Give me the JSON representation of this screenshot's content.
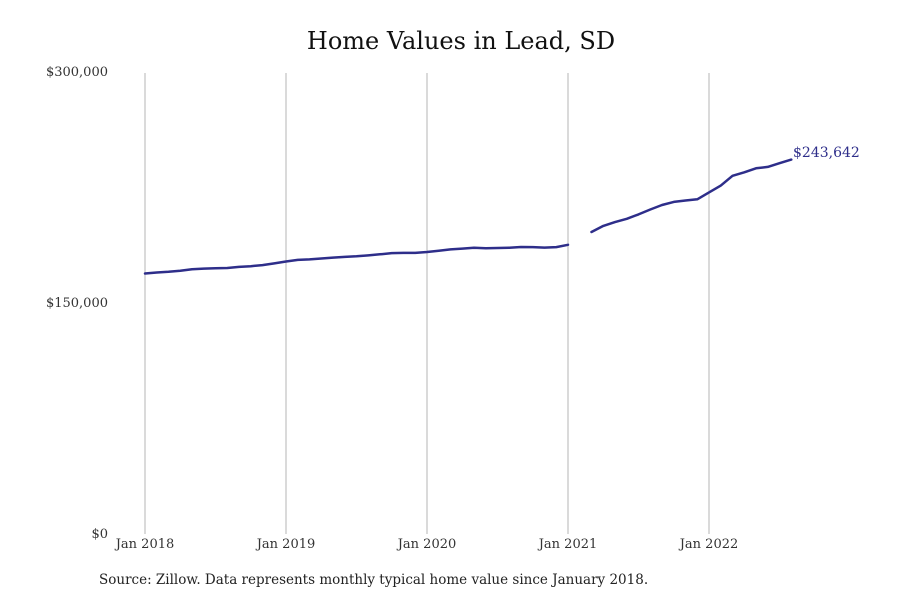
{
  "chart_data": {
    "type": "line",
    "title": "Home Values in Lead, SD",
    "xlabel": "",
    "ylabel": "",
    "yticks": [
      "$0",
      "$150,000",
      "$300,000"
    ],
    "ylim": [
      0,
      300000
    ],
    "xticks": [
      "Jan 2018",
      "Jan 2019",
      "Jan 2020",
      "Jan 2021",
      "Jan 2022"
    ],
    "grid": "vertical",
    "line_color": "#2e2e8a",
    "end_label": "$243,642",
    "series": [
      {
        "values": [
          {
            "date": "2018-01",
            "value": 169500
          },
          {
            "date": "2018-02",
            "value": 170200
          },
          {
            "date": "2018-03",
            "value": 170600
          },
          {
            "date": "2018-04",
            "value": 171300
          },
          {
            "date": "2018-05",
            "value": 172300
          },
          {
            "date": "2018-06",
            "value": 172700
          },
          {
            "date": "2018-07",
            "value": 173000
          },
          {
            "date": "2018-08",
            "value": 173100
          },
          {
            "date": "2018-09",
            "value": 173800
          },
          {
            "date": "2018-10",
            "value": 174300
          },
          {
            "date": "2018-11",
            "value": 175000
          },
          {
            "date": "2018-12",
            "value": 176100
          },
          {
            "date": "2019-01",
            "value": 177300
          },
          {
            "date": "2019-02",
            "value": 178400
          },
          {
            "date": "2019-03",
            "value": 178700
          },
          {
            "date": "2019-04",
            "value": 179300
          },
          {
            "date": "2019-05",
            "value": 179900
          },
          {
            "date": "2019-06",
            "value": 180300
          },
          {
            "date": "2019-07",
            "value": 180700
          },
          {
            "date": "2019-08",
            "value": 181300
          },
          {
            "date": "2019-09",
            "value": 182000
          },
          {
            "date": "2019-10",
            "value": 182800
          },
          {
            "date": "2019-11",
            "value": 182900
          },
          {
            "date": "2019-12",
            "value": 182900
          },
          {
            "date": "2020-01",
            "value": 183500
          },
          {
            "date": "2020-02",
            "value": 184300
          },
          {
            "date": "2020-03",
            "value": 185200
          },
          {
            "date": "2020-04",
            "value": 185700
          },
          {
            "date": "2020-05",
            "value": 186300
          },
          {
            "date": "2020-06",
            "value": 186000
          },
          {
            "date": "2020-07",
            "value": 186100
          },
          {
            "date": "2020-08",
            "value": 186300
          },
          {
            "date": "2020-09",
            "value": 186800
          },
          {
            "date": "2020-10",
            "value": 186700
          },
          {
            "date": "2020-11",
            "value": 186400
          },
          {
            "date": "2020-12",
            "value": 186700
          },
          {
            "date": "2021-01",
            "value": 188200
          },
          {
            "date": "2021-02",
            "value": null
          },
          {
            "date": "2021-03",
            "value": 196500
          },
          {
            "date": "2021-04",
            "value": 200500
          },
          {
            "date": "2021-05",
            "value": 203000
          },
          {
            "date": "2021-06",
            "value": 205100
          },
          {
            "date": "2021-07",
            "value": 208000
          },
          {
            "date": "2021-08",
            "value": 211200
          },
          {
            "date": "2021-09",
            "value": 214100
          },
          {
            "date": "2021-10",
            "value": 216100
          },
          {
            "date": "2021-11",
            "value": 217000
          },
          {
            "date": "2021-12",
            "value": 217800
          },
          {
            "date": "2022-01",
            "value": 222300
          },
          {
            "date": "2022-02",
            "value": 226700
          },
          {
            "date": "2022-03",
            "value": 233100
          },
          {
            "date": "2022-04",
            "value": 235400
          },
          {
            "date": "2022-05",
            "value": 238000
          },
          {
            "date": "2022-06",
            "value": 238900
          },
          {
            "date": "2022-07",
            "value": 241300
          },
          {
            "date": "2022-08",
            "value": 243642
          }
        ]
      }
    ]
  },
  "footer": {
    "source": "Source: Zillow. Data represents monthly typical home value since January 2018."
  }
}
